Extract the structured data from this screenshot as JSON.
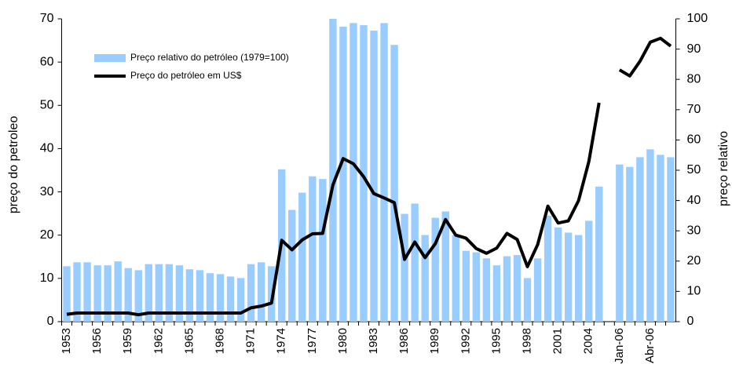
{
  "chart_data": {
    "type": "bar-line",
    "legend": "upper left",
    "ylabel": "preço do petroleo",
    "y2label": "preço relativo",
    "ylim": [
      0,
      70
    ],
    "yticks": [
      0,
      10,
      20,
      30,
      40,
      50,
      60,
      70
    ],
    "y2lim": [
      0,
      100
    ],
    "y2ticks": [
      0,
      10,
      20,
      30,
      40,
      50,
      60,
      70,
      80,
      90,
      100
    ],
    "categories": [
      "1953",
      null,
      null,
      "1956",
      null,
      null,
      "1959",
      null,
      null,
      "1962",
      null,
      null,
      "1965",
      null,
      null,
      "1968",
      null,
      null,
      "1971",
      null,
      null,
      "1974",
      null,
      null,
      "1977",
      null,
      null,
      "1980",
      null,
      null,
      "1983",
      null,
      null,
      "1986",
      null,
      null,
      "1989",
      null,
      null,
      "1992",
      null,
      null,
      "1995",
      null,
      null,
      "1998",
      null,
      null,
      "2001",
      null,
      null,
      "2004",
      null,
      null,
      "Jan-06",
      null,
      null,
      "Abr-06",
      null,
      null
    ],
    "series": [
      {
        "name": "Preço relativo do petróleo (1979=100)",
        "type": "bar",
        "axis": "y2",
        "color": "#99ccff",
        "values": [
          18.3,
          19.6,
          19.6,
          18.6,
          18.6,
          19.9,
          17.7,
          17,
          19,
          19,
          19,
          18.6,
          17.3,
          17,
          16,
          15.7,
          14.9,
          14.4,
          19,
          19.6,
          18.3,
          50.3,
          36.9,
          42.6,
          48,
          47.1,
          100,
          97.4,
          98.6,
          97.9,
          96.1,
          98.6,
          91.4,
          35.6,
          39,
          28.6,
          34.3,
          36.4,
          28.6,
          23.4,
          22.9,
          20.9,
          18.6,
          21.6,
          22,
          14.4,
          20.9,
          35,
          31.1,
          29.4,
          28.6,
          33.3,
          44.6,
          null,
          51.9,
          51.1,
          54.3,
          56.9,
          55.1,
          54.3
        ]
      },
      {
        "name": "Preço do petróleo em US$",
        "type": "line",
        "axis": "y",
        "color": "#000000",
        "values": [
          1.7,
          2,
          2,
          2,
          2,
          2,
          2,
          1.6,
          2,
          2,
          2,
          2,
          2,
          2,
          2,
          2,
          2,
          2,
          3.2,
          3.6,
          4.3,
          18.8,
          16.6,
          18.9,
          20.3,
          20.4,
          31.6,
          37.7,
          36.5,
          33.5,
          29.6,
          28.6,
          27.5,
          14.4,
          18.4,
          14.8,
          18,
          23.6,
          20,
          19.3,
          16.9,
          15.8,
          17,
          20.4,
          19,
          12.7,
          17.8,
          26.7,
          22.8,
          23.3,
          28,
          37,
          50.6,
          null,
          58.2,
          56.8,
          60.2,
          64.6,
          65.5,
          63.7
        ]
      }
    ]
  }
}
